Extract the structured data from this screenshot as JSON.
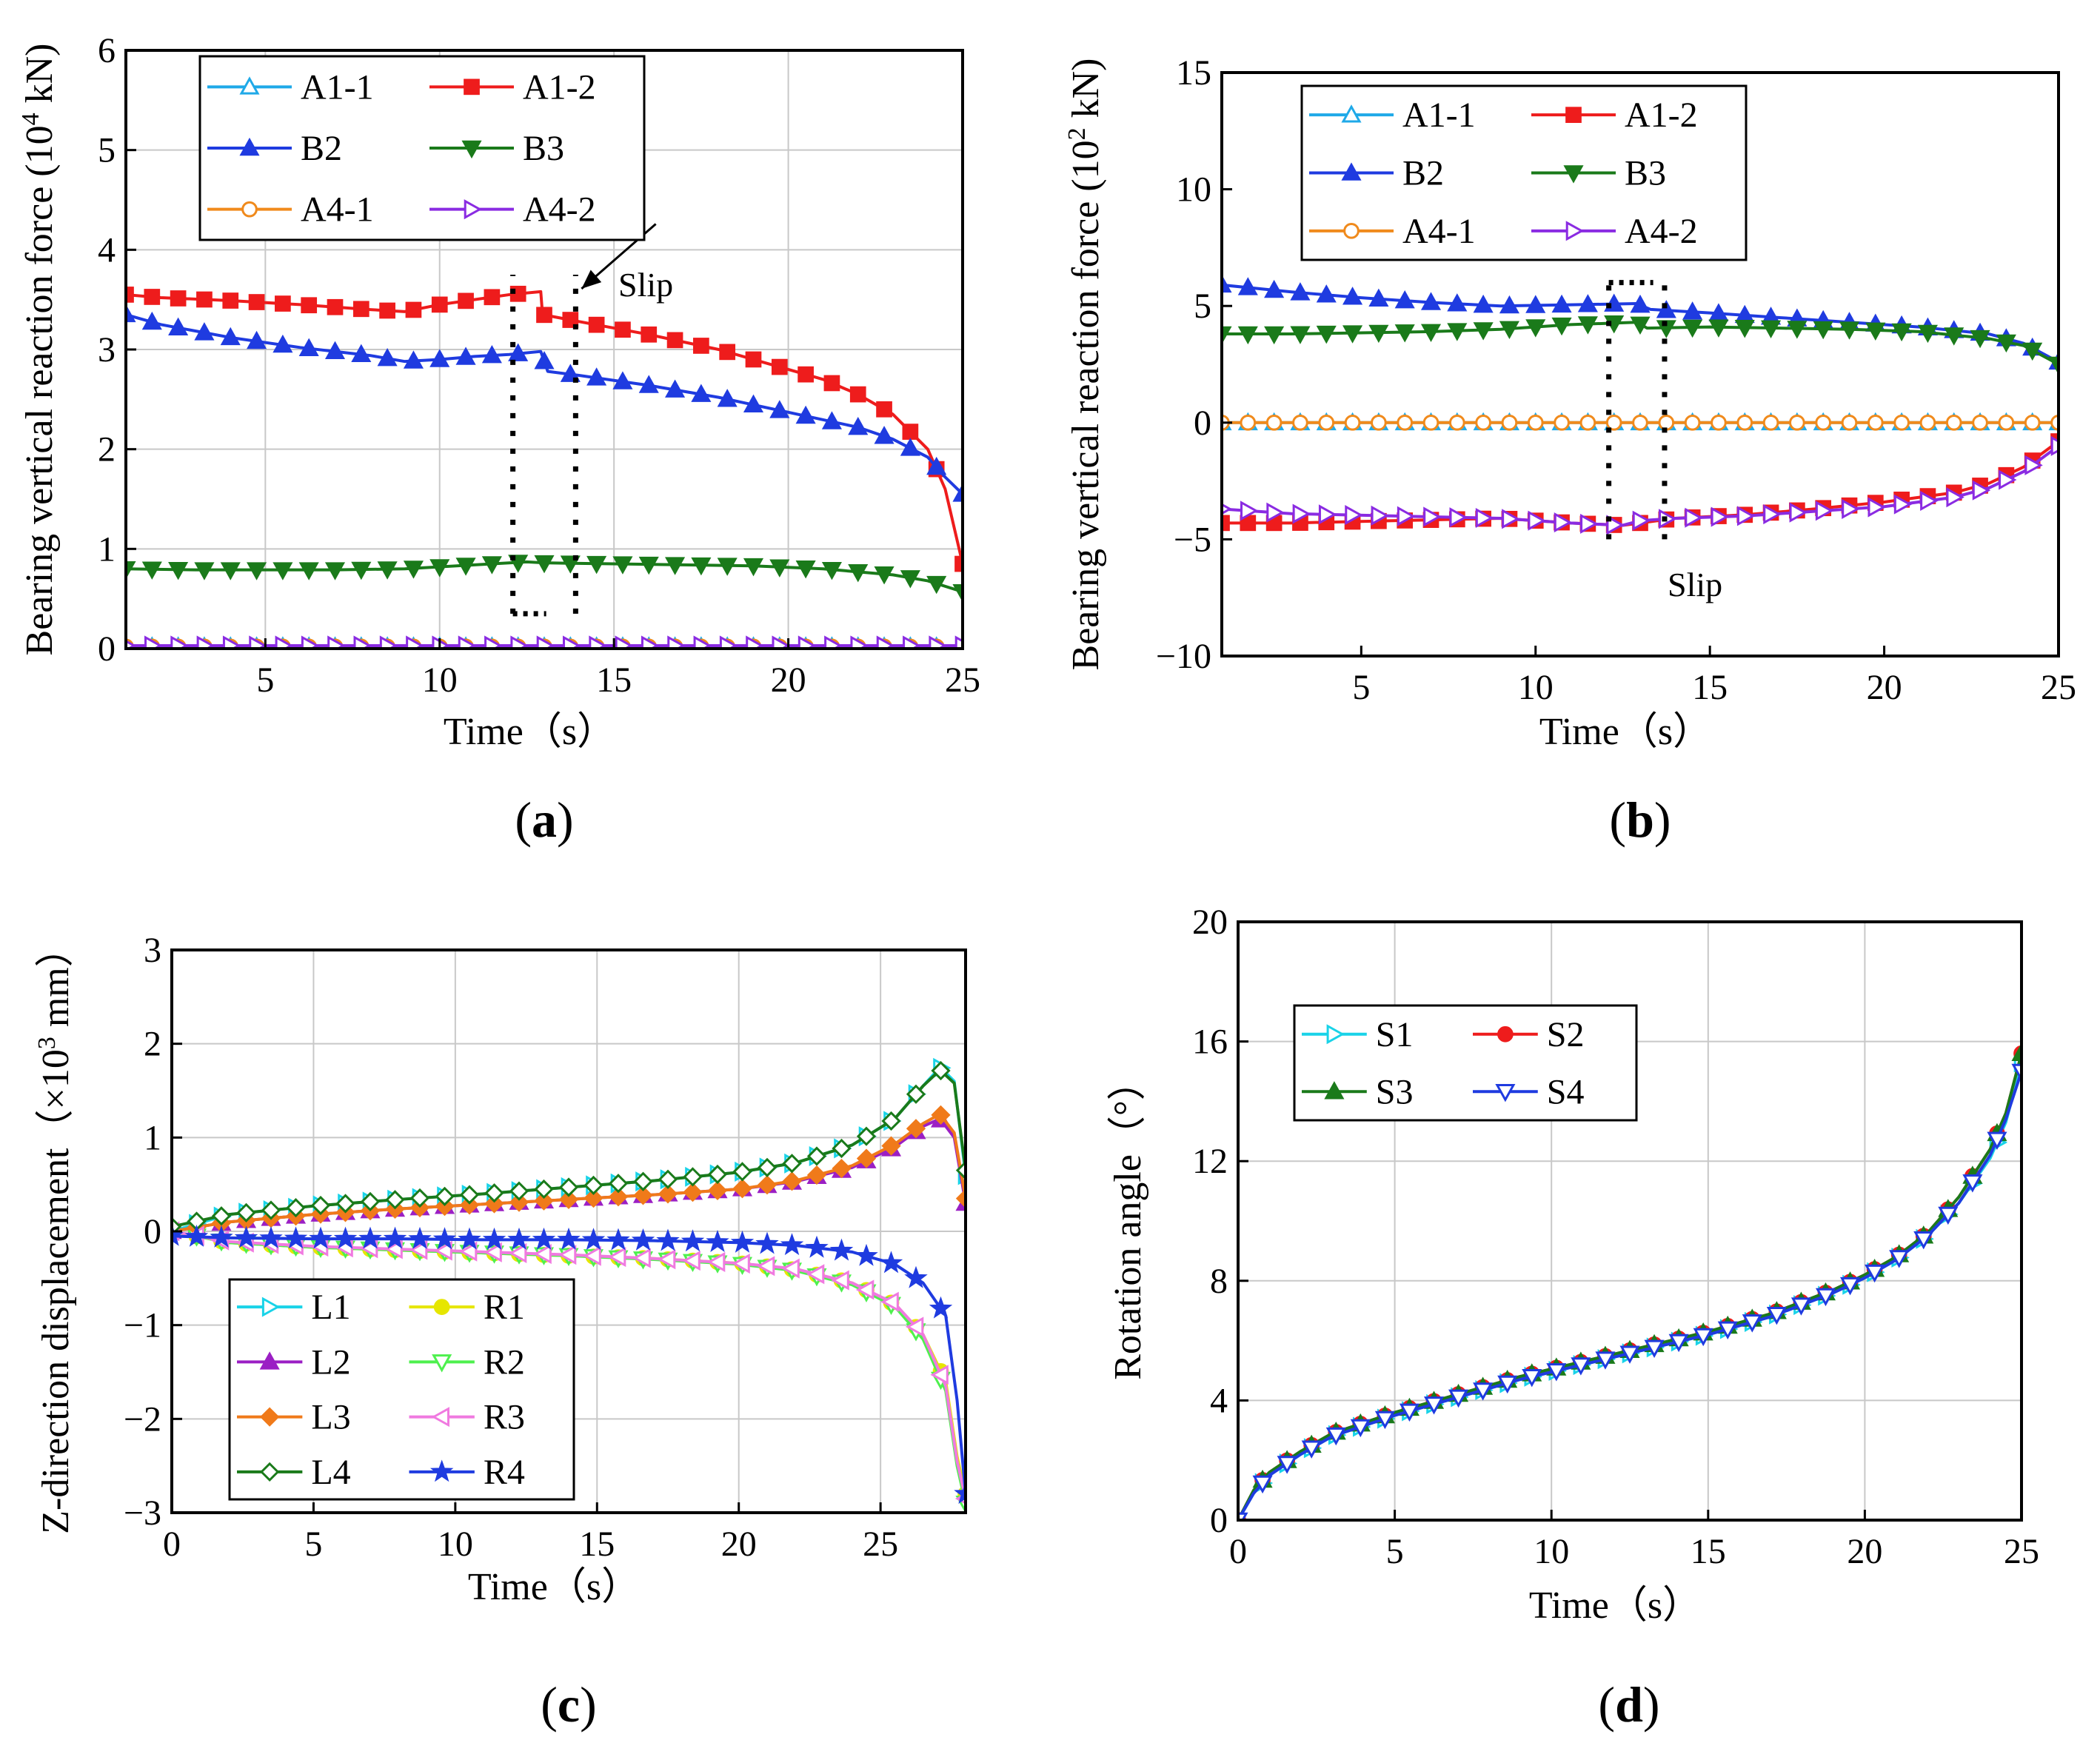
{
  "chart_data": [
    {
      "type": "line",
      "panel_label": "a",
      "title": "",
      "xlabel": "Time（s）",
      "ylabel_main": "Bearing vertical reaction force (10",
      "ylabel_sup": "4",
      "ylabel_end": " kN)",
      "xlim": [
        1,
        25
      ],
      "ylim": [
        0,
        6
      ],
      "xticks": [
        "5",
        "10",
        "15",
        "20",
        "25"
      ],
      "xtick_values": [
        5,
        10,
        15,
        20,
        25
      ],
      "yticks": [
        "0",
        "1",
        "2",
        "3",
        "4",
        "5",
        "6"
      ],
      "ytick_values": [
        0,
        1,
        2,
        3,
        4,
        5,
        6
      ],
      "grid": true,
      "legend_position": "top-left",
      "legend_columns": 2,
      "annotation": "Slip",
      "slip_box": {
        "x0": 12.1,
        "x1": 13.9,
        "y0": 0.35,
        "y1": 3.75
      },
      "slip_arrow": {
        "from": [
          14.5,
          3.85
        ],
        "to": [
          13.9,
          3.55
        ]
      },
      "series": [
        {
          "name": "A1-1",
          "color": "#1fa9e8",
          "marker": "triangle-up-open",
          "x": [
            1,
            5,
            10,
            15,
            20,
            25
          ],
          "y": [
            0.02,
            0.02,
            0.02,
            0.02,
            0.02,
            0.02
          ]
        },
        {
          "name": "A1-2",
          "color": "#ee1c1c",
          "marker": "square",
          "x": [
            1,
            2,
            4,
            6,
            8,
            9,
            10,
            11,
            12,
            12.9,
            12.95,
            14,
            16,
            18,
            20,
            21,
            22,
            23,
            24,
            24.5,
            25
          ],
          "y": [
            3.55,
            3.52,
            3.49,
            3.45,
            3.4,
            3.38,
            3.45,
            3.5,
            3.55,
            3.58,
            3.35,
            3.28,
            3.15,
            3.0,
            2.8,
            2.7,
            2.55,
            2.35,
            2.0,
            1.6,
            0.85
          ]
        },
        {
          "name": "B2",
          "color": "#1f3be0",
          "marker": "triangle-up",
          "x": [
            1,
            2,
            4,
            6,
            8,
            9,
            10,
            11,
            12,
            12.9,
            13.1,
            14,
            16,
            18,
            20,
            22,
            23,
            24,
            24.5,
            25
          ],
          "y": [
            3.35,
            3.25,
            3.12,
            3.02,
            2.94,
            2.88,
            2.9,
            2.93,
            2.95,
            2.98,
            2.78,
            2.74,
            2.64,
            2.52,
            2.37,
            2.22,
            2.1,
            1.92,
            1.72,
            1.55
          ]
        },
        {
          "name": "B3",
          "color": "#1a7a1a",
          "marker": "triangle-down",
          "x": [
            1,
            3,
            5,
            7,
            9,
            11,
            12.5,
            13,
            15,
            17,
            19,
            21,
            23,
            24,
            25
          ],
          "y": [
            0.8,
            0.79,
            0.79,
            0.79,
            0.8,
            0.84,
            0.87,
            0.86,
            0.85,
            0.84,
            0.83,
            0.8,
            0.74,
            0.68,
            0.57
          ]
        },
        {
          "name": "A4-1",
          "color": "#f08a1c",
          "marker": "circle-open",
          "x": [
            1,
            5,
            10,
            15,
            20,
            25
          ],
          "y": [
            0.02,
            0.02,
            0.02,
            0.02,
            0.02,
            0.02
          ]
        },
        {
          "name": "A4-2",
          "color": "#8a2be2",
          "marker": "triangle-right-open",
          "x": [
            1,
            5,
            10,
            15,
            20,
            25
          ],
          "y": [
            0.03,
            0.03,
            0.03,
            0.03,
            0.03,
            0.03
          ]
        }
      ]
    },
    {
      "type": "line",
      "panel_label": "b",
      "title": "",
      "xlabel": "Time（s）",
      "ylabel_main": "Bearing vertical reaction force (10",
      "ylabel_sup": "2",
      "ylabel_end": " kN)",
      "xlim": [
        1,
        25
      ],
      "ylim": [
        -10,
        15
      ],
      "xticks": [
        "5",
        "10",
        "15",
        "20",
        "25"
      ],
      "xtick_values": [
        5,
        10,
        15,
        20,
        25
      ],
      "yticks": [
        "−10",
        "−5",
        "0",
        "5",
        "10",
        "15"
      ],
      "ytick_values": [
        -10,
        -5,
        0,
        5,
        10,
        15
      ],
      "grid": false,
      "legend_position": "top-left",
      "legend_columns": 2,
      "annotation": "Slip",
      "slip_box": {
        "x0": 12.1,
        "x1": 13.7,
        "y0": -5.0,
        "y1": 6.0
      },
      "series": [
        {
          "name": "A1-1",
          "color": "#1fa9e8",
          "marker": "triangle-up-open",
          "x": [
            1,
            6,
            11,
            16,
            21,
            25
          ],
          "y": [
            0,
            0,
            0,
            0,
            0,
            0
          ]
        },
        {
          "name": "A1-2",
          "color": "#ee1c1c",
          "marker": "square",
          "x": [
            1,
            3,
            6,
            9,
            11,
            12.5,
            13,
            14,
            16,
            18,
            20,
            22,
            23,
            24,
            25
          ],
          "y": [
            -4.3,
            -4.3,
            -4.2,
            -4.1,
            -4.3,
            -4.4,
            -4.3,
            -4.1,
            -3.95,
            -3.7,
            -3.4,
            -3.0,
            -2.6,
            -1.9,
            -0.8
          ]
        },
        {
          "name": "B2",
          "color": "#1f3be0",
          "marker": "triangle-up",
          "x": [
            1,
            3,
            5,
            7,
            9,
            11,
            12.9,
            13.3,
            15,
            17,
            19,
            21,
            23,
            24,
            25
          ],
          "y": [
            5.9,
            5.6,
            5.35,
            5.15,
            5.0,
            5.05,
            5.1,
            4.85,
            4.7,
            4.5,
            4.3,
            4.1,
            3.8,
            3.4,
            2.6
          ]
        },
        {
          "name": "B3",
          "color": "#1a7a1a",
          "marker": "triangle-down",
          "x": [
            1,
            3,
            5,
            7,
            9,
            11,
            12.9,
            13.2,
            15,
            17,
            19,
            21,
            23,
            24,
            25
          ],
          "y": [
            3.8,
            3.8,
            3.85,
            3.9,
            4.0,
            4.2,
            4.3,
            4.05,
            4.1,
            4.05,
            4.0,
            3.9,
            3.6,
            3.3,
            2.5
          ]
        },
        {
          "name": "A4-1",
          "color": "#f08a1c",
          "marker": "circle-open",
          "x": [
            1,
            5,
            9,
            12.8,
            16.8,
            20.8,
            25
          ],
          "y": [
            0,
            0,
            0,
            0,
            0,
            0,
            0
          ]
        },
        {
          "name": "A4-2",
          "color": "#8a2be2",
          "marker": "triangle-right-open",
          "x": [
            1,
            3,
            6,
            9,
            11,
            12.5,
            13,
            14,
            16,
            18,
            20,
            22,
            23,
            24,
            25
          ],
          "y": [
            -3.7,
            -3.9,
            -4.0,
            -4.1,
            -4.3,
            -4.4,
            -4.2,
            -4.1,
            -4.0,
            -3.8,
            -3.6,
            -3.2,
            -2.8,
            -2.1,
            -1.0
          ]
        }
      ]
    },
    {
      "type": "line",
      "panel_label": "c",
      "title": "",
      "xlabel": "Time（s）",
      "ylabel_main": "Z-direction displacement（×10",
      "ylabel_sup": "3",
      "ylabel_end": " mm）",
      "xlim": [
        0,
        28
      ],
      "ylim": [
        -3,
        3
      ],
      "xticks": [
        "0",
        "5",
        "10",
        "15",
        "20",
        "25"
      ],
      "xtick_values": [
        0,
        5,
        10,
        15,
        20,
        25
      ],
      "yticks": [
        "−3",
        "−2",
        "−1",
        "0",
        "1",
        "2",
        "3"
      ],
      "ytick_values": [
        -3,
        -2,
        -1,
        0,
        1,
        2,
        3
      ],
      "grid": true,
      "legend_position": "bottom-left",
      "legend_columns": 2,
      "series": [
        {
          "name": "L1",
          "color": "#19d3e8",
          "marker": "triangle-right-open",
          "x": [
            0,
            2,
            5,
            8,
            11,
            14,
            17,
            20,
            22,
            24,
            25.5,
            26.5,
            27.1,
            27.6,
            28
          ],
          "y": [
            0,
            0.18,
            0.27,
            0.34,
            0.4,
            0.47,
            0.54,
            0.63,
            0.73,
            0.92,
            1.2,
            1.55,
            1.75,
            1.6,
            0.6
          ]
        },
        {
          "name": "R1",
          "color": "#e6e600",
          "marker": "circle",
          "x": [
            0,
            2,
            5,
            8,
            11,
            14,
            17,
            20,
            22,
            24,
            25.5,
            26.5,
            27.3,
            27.7,
            28
          ],
          "y": [
            0,
            -0.12,
            -0.17,
            -0.2,
            -0.23,
            -0.26,
            -0.29,
            -0.34,
            -0.41,
            -0.55,
            -0.78,
            -1.1,
            -1.6,
            -2.4,
            -2.8
          ]
        },
        {
          "name": "L2",
          "color": "#9b1fc4",
          "marker": "triangle-up",
          "x": [
            0,
            2,
            5,
            8,
            11,
            14,
            17,
            20,
            22,
            24,
            25.5,
            26.5,
            27.1,
            27.6,
            28
          ],
          "y": [
            0,
            0.1,
            0.18,
            0.24,
            0.29,
            0.34,
            0.39,
            0.45,
            0.53,
            0.68,
            0.9,
            1.12,
            1.2,
            1.0,
            0.3
          ]
        },
        {
          "name": "R2",
          "color": "#4ef04e",
          "marker": "triangle-down-open",
          "x": [
            0,
            2,
            5,
            8,
            11,
            14,
            17,
            20,
            22,
            24,
            25.5,
            26.5,
            27.3,
            27.7,
            28
          ],
          "y": [
            0,
            -0.12,
            -0.17,
            -0.2,
            -0.23,
            -0.26,
            -0.3,
            -0.35,
            -0.42,
            -0.57,
            -0.8,
            -1.15,
            -1.7,
            -2.5,
            -2.9
          ]
        },
        {
          "name": "L3",
          "color": "#f07a1a",
          "marker": "diamond",
          "x": [
            0,
            2,
            5,
            8,
            11,
            14,
            17,
            20,
            22,
            24,
            25.5,
            26.5,
            27.1,
            27.6,
            28
          ],
          "y": [
            0,
            0.1,
            0.18,
            0.24,
            0.29,
            0.34,
            0.39,
            0.45,
            0.54,
            0.7,
            0.93,
            1.15,
            1.25,
            1.05,
            0.35
          ]
        },
        {
          "name": "R3",
          "color": "#f07ae0",
          "marker": "triangle-left-open",
          "x": [
            0,
            2,
            5,
            8,
            11,
            14,
            17,
            20,
            22,
            24,
            25.5,
            26.5,
            27.3,
            27.7,
            28
          ],
          "y": [
            0,
            -0.11,
            -0.16,
            -0.19,
            -0.22,
            -0.25,
            -0.29,
            -0.34,
            -0.4,
            -0.55,
            -0.77,
            -1.1,
            -1.65,
            -2.45,
            -2.85
          ]
        },
        {
          "name": "L4",
          "color": "#1a7a1a",
          "marker": "diamond-open",
          "x": [
            0,
            2,
            5,
            8,
            11,
            14,
            17,
            20,
            22,
            24,
            25.5,
            26.5,
            27.1,
            27.6,
            28
          ],
          "y": [
            0.05,
            0.18,
            0.27,
            0.34,
            0.4,
            0.47,
            0.54,
            0.63,
            0.73,
            0.92,
            1.2,
            1.55,
            1.72,
            1.58,
            0.65
          ]
        },
        {
          "name": "R4",
          "color": "#1f3be0",
          "marker": "star",
          "x": [
            0,
            2,
            5,
            8,
            11,
            14,
            17,
            20,
            22,
            24,
            25.5,
            26.5,
            27.3,
            27.7,
            28
          ],
          "y": [
            -0.05,
            -0.07,
            -0.08,
            -0.08,
            -0.09,
            -0.09,
            -0.1,
            -0.12,
            -0.15,
            -0.22,
            -0.35,
            -0.55,
            -0.9,
            -1.8,
            -2.8
          ]
        }
      ]
    },
    {
      "type": "line",
      "panel_label": "d",
      "title": "",
      "xlabel": "Time（s）",
      "ylabel_main": "Rotation angle（°）",
      "ylabel_sup": "",
      "ylabel_end": "",
      "xlim": [
        0,
        25
      ],
      "ylim": [
        0,
        20
      ],
      "xticks": [
        "0",
        "5",
        "10",
        "15",
        "20",
        "25"
      ],
      "xtick_values": [
        0,
        5,
        10,
        15,
        20,
        25
      ],
      "yticks": [
        "0",
        "4",
        "8",
        "12",
        "16",
        "20"
      ],
      "ytick_values": [
        0,
        4,
        8,
        12,
        16,
        20
      ],
      "grid": true,
      "legend_position": "upper-left",
      "legend_columns": 2,
      "series": [
        {
          "name": "S1",
          "color": "#19d3e8",
          "marker": "triangle-right-open",
          "x": [
            0,
            0.5,
            1,
            2,
            3,
            5,
            7,
            9,
            11,
            13,
            15,
            17,
            19,
            20,
            21,
            22,
            23,
            24,
            24.5,
            25
          ],
          "y": [
            0,
            0.9,
            1.5,
            2.2,
            2.8,
            3.5,
            4.1,
            4.7,
            5.2,
            5.7,
            6.2,
            6.8,
            7.6,
            8.1,
            8.7,
            9.5,
            10.6,
            12.1,
            13.3,
            15.3
          ]
        },
        {
          "name": "S2",
          "color": "#ee1c1c",
          "marker": "circle",
          "x": [
            0,
            0.5,
            1,
            2,
            3,
            5,
            7,
            9,
            11,
            13,
            15,
            17,
            19,
            20,
            21,
            22,
            23,
            24,
            24.5,
            25
          ],
          "y": [
            0,
            1.0,
            1.6,
            2.3,
            2.9,
            3.6,
            4.2,
            4.8,
            5.3,
            5.8,
            6.3,
            6.9,
            7.7,
            8.2,
            8.8,
            9.6,
            10.8,
            12.4,
            13.6,
            15.6
          ]
        },
        {
          "name": "S3",
          "color": "#1a7a1a",
          "marker": "triangle-up",
          "x": [
            0,
            0.5,
            1,
            2,
            3,
            5,
            7,
            9,
            11,
            13,
            15,
            17,
            19,
            20,
            21,
            22,
            23,
            24,
            24.5,
            25
          ],
          "y": [
            0,
            1.0,
            1.6,
            2.3,
            2.9,
            3.6,
            4.2,
            4.8,
            5.3,
            5.8,
            6.3,
            6.9,
            7.7,
            8.2,
            8.8,
            9.6,
            10.8,
            12.4,
            13.6,
            15.6
          ]
        },
        {
          "name": "S4",
          "color": "#1f3be0",
          "marker": "triangle-down-open",
          "x": [
            0,
            0.5,
            1,
            2,
            3,
            5,
            7,
            9,
            11,
            13,
            15,
            17,
            19,
            20,
            21,
            22,
            23,
            24,
            24.5,
            25
          ],
          "y": [
            0,
            0.9,
            1.5,
            2.2,
            2.8,
            3.5,
            4.1,
            4.7,
            5.2,
            5.7,
            6.2,
            6.8,
            7.6,
            8.1,
            8.7,
            9.5,
            10.6,
            12.2,
            13.4,
            15.0
          ]
        }
      ]
    }
  ]
}
